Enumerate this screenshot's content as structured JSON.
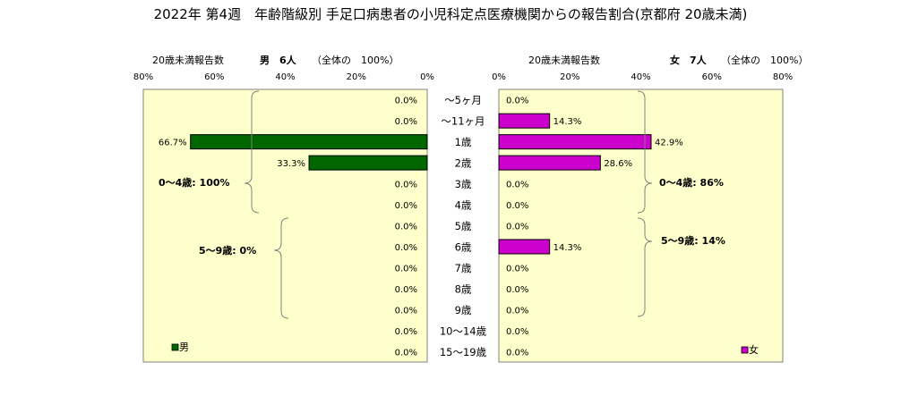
{
  "title": "2022年 第4週　年齢階級別 手足口病患者の小児科定点医療機関からの報告割合(京都府 20歳未満)",
  "left_panel": {
    "header_label": "20歳未満報告数",
    "header_count": "男　6人",
    "header_total": "（全体の　100%）",
    "legend": "男",
    "group_labels": [
      "0～4歳: 100%",
      "5～9歳: 0%"
    ]
  },
  "right_panel": {
    "header_label": "20歳未満報告数",
    "header_count": "女　7人",
    "header_total": "（全体の　100%）",
    "legend": "女",
    "group_labels": [
      "0～4歳: 86%",
      "5～9歳: 14%"
    ]
  },
  "colors": {
    "male": "#006600",
    "female": "#cc00cc",
    "plot_bg": "#ffffcc"
  },
  "chart_data": {
    "type": "bar",
    "orientation": "horizontal-butterfly",
    "categories": [
      "～5ヶ月",
      "～11ヶ月",
      "1歳",
      "2歳",
      "3歳",
      "4歳",
      "5歳",
      "6歳",
      "7歳",
      "8歳",
      "9歳",
      "10～14歳",
      "15～19歳"
    ],
    "series": [
      {
        "name": "男",
        "values": [
          0.0,
          0.0,
          66.7,
          33.3,
          0.0,
          0.0,
          0.0,
          0.0,
          0.0,
          0.0,
          0.0,
          0.0,
          0.0
        ],
        "labels": [
          "0.0%",
          "0.0%",
          "66.7%",
          "33.3%",
          "0.0%",
          "0.0%",
          "0.0%",
          "0.0%",
          "0.0%",
          "0.0%",
          "0.0%",
          "0.0%",
          "0.0%"
        ]
      },
      {
        "name": "女",
        "values": [
          0.0,
          14.3,
          42.9,
          28.6,
          0.0,
          0.0,
          0.0,
          14.3,
          0.0,
          0.0,
          0.0,
          0.0,
          0.0
        ],
        "labels": [
          "0.0%",
          "14.3%",
          "42.9%",
          "28.6%",
          "0.0%",
          "0.0%",
          "0.0%",
          "14.3%",
          "0.0%",
          "0.0%",
          "0.0%",
          "0.0%",
          "0.0%"
        ]
      }
    ],
    "x_ticks": [
      "80%",
      "60%",
      "40%",
      "20%",
      "0%"
    ],
    "x_ticks_right": [
      "0%",
      "20%",
      "40%",
      "60%",
      "80%"
    ],
    "xlim": [
      0,
      80
    ],
    "grid": false
  }
}
